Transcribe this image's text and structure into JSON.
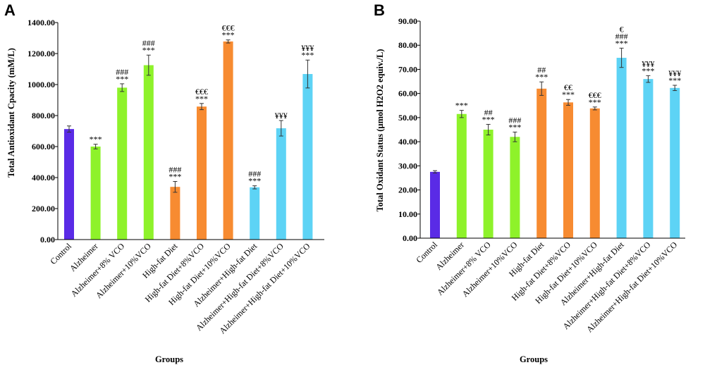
{
  "colors": {
    "control": "#5a2be6",
    "alzheimer": "#8ef22a",
    "highfat": "#f78b31",
    "combined": "#5dd3f5"
  },
  "chart_data": [
    {
      "type": "bar",
      "panel": "A",
      "ylabel": "Total Antioxidant Cpacity (mM/L)",
      "xlabel": "Groups",
      "ylim": [
        0,
        1400
      ],
      "yticks": [
        "0.00",
        "200.00",
        "400.00",
        "600.00",
        "800.00",
        "1000.00",
        "1200.00",
        "1400.00"
      ],
      "ytick_values": [
        0,
        200,
        400,
        600,
        800,
        1000,
        1200,
        1400
      ],
      "categories": [
        "Control",
        "Alzheimer",
        "Alzheimer+8% VCO",
        "Alzheimer+10%VCO",
        "High-fat Diet",
        "High-fat Diet+8%VCO",
        "High-fat Diet+10%VCO",
        "Alzheimer+High-fat Diet",
        "Alzheimer+High-fat Diet+8%VCO",
        "Alzheimer+High-fat Diet+10%VCO"
      ],
      "values": [
        713,
        600,
        980,
        1125,
        340,
        858,
        1278,
        337,
        718,
        1068
      ],
      "errors": [
        20,
        15,
        25,
        65,
        35,
        20,
        10,
        10,
        50,
        90
      ],
      "color_groups": [
        "control",
        "alzheimer",
        "alzheimer",
        "alzheimer",
        "highfat",
        "highfat",
        "highfat",
        "combined",
        "combined",
        "combined"
      ],
      "significance": [
        [],
        [
          "***"
        ],
        [
          "###",
          "***"
        ],
        [
          "###",
          "***"
        ],
        [
          "###",
          "***"
        ],
        [
          "€€€",
          "***"
        ],
        [
          "€€€",
          "***"
        ],
        [
          "###",
          "***"
        ],
        [
          "¥¥¥"
        ],
        [
          "¥¥¥",
          "***"
        ]
      ]
    },
    {
      "type": "bar",
      "panel": "B",
      "ylabel": "Total Oxidant Status (µmol H2O2 equiv./L)",
      "xlabel": "Groups",
      "ylim": [
        0,
        90
      ],
      "yticks": [
        "0.00",
        "10.00",
        "20.00",
        "30.00",
        "40.00",
        "50.00",
        "60.00",
        "70.00",
        "80.00",
        "90.00"
      ],
      "ytick_values": [
        0,
        10,
        20,
        30,
        40,
        50,
        60,
        70,
        80,
        90
      ],
      "categories": [
        "Control",
        "Alzheimer",
        "Alzheimer+8% VCO",
        "Alzheimer+10%VCO",
        "High-fat Diet",
        "High-fat Diet+8%VCO",
        "High-fat Diet+10%VCO",
        "Alzheimer+High-fat Diet",
        "Alzheimer+High-fat Diet+8%VCO",
        "Alzheimer+High-fat Diet+10%VCO"
      ],
      "values": [
        27.5,
        51.5,
        45,
        42,
        62,
        56.3,
        53.8,
        74.8,
        66,
        62.3
      ],
      "errors": [
        0.5,
        1.5,
        2.2,
        2.0,
        2.8,
        1.2,
        0.6,
        4.0,
        1.4,
        1.1
      ],
      "color_groups": [
        "control",
        "alzheimer",
        "alzheimer",
        "alzheimer",
        "highfat",
        "highfat",
        "highfat",
        "combined",
        "combined",
        "combined"
      ],
      "significance": [
        [],
        [
          "***"
        ],
        [
          "##",
          "***"
        ],
        [
          "###",
          "***"
        ],
        [
          "##",
          "***"
        ],
        [
          "€€",
          "***"
        ],
        [
          "€€€",
          "***"
        ],
        [
          "€",
          "###",
          "***"
        ],
        [
          "¥¥¥",
          "***"
        ],
        [
          "¥¥¥",
          "***"
        ]
      ]
    }
  ]
}
